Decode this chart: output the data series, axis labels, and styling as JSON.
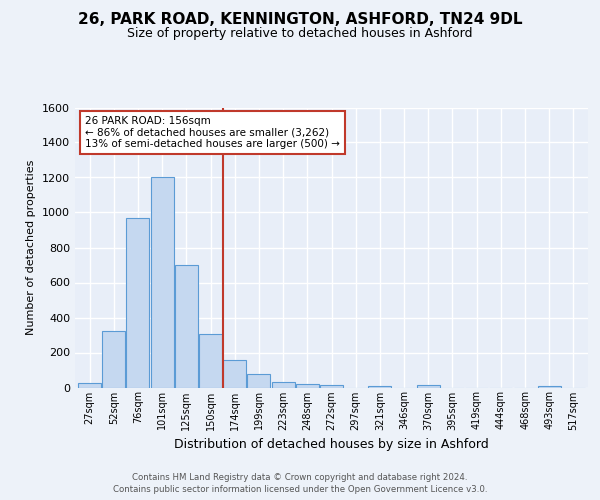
{
  "title": "26, PARK ROAD, KENNINGTON, ASHFORD, TN24 9DL",
  "subtitle": "Size of property relative to detached houses in Ashford",
  "xlabel": "Distribution of detached houses by size in Ashford",
  "ylabel": "Number of detached properties",
  "footer_line1": "Contains HM Land Registry data © Crown copyright and database right 2024.",
  "footer_line2": "Contains public sector information licensed under the Open Government Licence v3.0.",
  "bar_labels": [
    "27sqm",
    "52sqm",
    "76sqm",
    "101sqm",
    "125sqm",
    "150sqm",
    "174sqm",
    "199sqm",
    "223sqm",
    "248sqm",
    "272sqm",
    "297sqm",
    "321sqm",
    "346sqm",
    "370sqm",
    "395sqm",
    "419sqm",
    "444sqm",
    "468sqm",
    "493sqm",
    "517sqm"
  ],
  "bar_values": [
    25,
    325,
    970,
    1200,
    700,
    305,
    155,
    80,
    30,
    20,
    12,
    0,
    10,
    0,
    12,
    0,
    0,
    0,
    0,
    10,
    0
  ],
  "bar_color": "#c5d8f0",
  "bar_edge_color": "#5b9bd5",
  "annotation_text": "26 PARK ROAD: 156sqm\n← 86% of detached houses are smaller (3,262)\n13% of semi-detached houses are larger (500) →",
  "property_line_color": "#c0392b",
  "annotation_box_edge_color": "#c0392b",
  "background_color": "#edf2f9",
  "plot_background_color": "#e8eef8",
  "grid_color": "#ffffff",
  "ylim": [
    0,
    1600
  ],
  "title_fontsize": 11,
  "subtitle_fontsize": 9
}
